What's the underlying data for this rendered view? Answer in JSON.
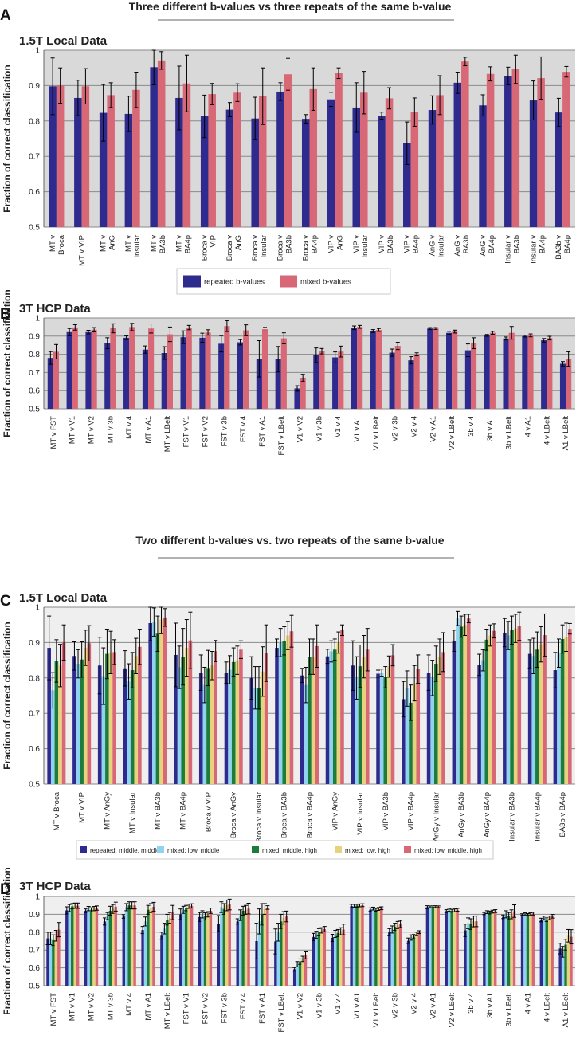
{
  "section_titles": {
    "top": "Three different b-values vs three repeats of the same b-value",
    "bottom": "Two different b-values vs. two repeats of the same b-value"
  },
  "colors": {
    "series": [
      "#2e2a8e",
      "#8fd3f0",
      "#1d7c3a",
      "#e8d27e",
      "#d96877"
    ],
    "plot_bg_shaded": "#d9d9d9",
    "plot_bg_light": "#efefef"
  },
  "chart_data": [
    {
      "panel": "A",
      "type": "bar",
      "title": "1.5T Local Data",
      "ylabel": "Fraction of correct classification",
      "ylim": [
        0.5,
        1.0
      ],
      "yticks": [
        "0.5",
        "0.6",
        "0.7",
        "0.8",
        "0.9",
        "1"
      ],
      "categories": [
        "MT v|Broca",
        "MT v VIP",
        "MT v|AnG",
        "MT v|Insular",
        "MT v|BA3b",
        "MT v|BA4p",
        "Broca v|VIP",
        "Broca v|AnG",
        "Broca v|Insular",
        "Broca v|BA3b",
        "Broca v|BA4p",
        "VIP v|AnG",
        "VIP v|Insular",
        "VIP v|BA3b",
        "VIP v|BA4p",
        "AnG v|Insular",
        "AnG v|BA3b",
        "AnG v|BA4p",
        "Insular v|BA3b",
        "Insular v|BA4p",
        "BA3b v|BA4p"
      ],
      "series": [
        {
          "name": "repeated b-values",
          "values": [
            0.898,
            0.865,
            0.823,
            0.82,
            0.952,
            0.865,
            0.813,
            0.832,
            0.807,
            0.883,
            0.806,
            0.861,
            0.838,
            0.815,
            0.737,
            0.831,
            0.908,
            0.844,
            0.927,
            0.858,
            0.824
          ],
          "errors": [
            0.08,
            0.05,
            0.08,
            0.05,
            0.05,
            0.09,
            0.06,
            0.02,
            0.06,
            0.025,
            0.012,
            0.02,
            0.07,
            0.01,
            0.06,
            0.04,
            0.03,
            0.03,
            0.025,
            0.055,
            0.04
          ]
        },
        {
          "name": "mixed b-values",
          "values": [
            0.9,
            0.898,
            0.873,
            0.888,
            0.971,
            0.906,
            0.876,
            0.88,
            0.87,
            0.932,
            0.89,
            0.935,
            0.88,
            0.864,
            0.825,
            0.873,
            0.968,
            0.933,
            0.946,
            0.921,
            0.939
          ],
          "errors": [
            0.05,
            0.05,
            0.035,
            0.05,
            0.025,
            0.08,
            0.03,
            0.025,
            0.08,
            0.045,
            0.06,
            0.015,
            0.06,
            0.03,
            0.04,
            0.055,
            0.012,
            0.02,
            0.04,
            0.06,
            0.015
          ]
        }
      ],
      "legend": [
        "repeated b-values",
        "mixed b-values"
      ]
    },
    {
      "panel": "B",
      "type": "bar",
      "title": "3T HCP Data",
      "ylabel": "Fraction of correct classification",
      "ylim": [
        0.5,
        1.0
      ],
      "yticks": [
        "0.5",
        "0.6",
        "0.7",
        "0.8",
        "0.9",
        "1"
      ],
      "categories": [
        "MT v FST",
        "MT v V1",
        "MT v V2",
        "MT v 3b",
        "MT v 4",
        "MT v A1",
        "MT v LBelt",
        "FST v V1",
        "FST v V2",
        "FST v 3b",
        "FST v 4",
        "FST v A1",
        "FST v LBelt",
        "V1 v V2",
        "V1 v 3b",
        "V1 v 4",
        "V1 v A1",
        "V1 v LBelt",
        "V2 v 3b",
        "V2 v 4",
        "V2 v A1",
        "V2 v LBelt",
        "3b v 4",
        "3b v A1",
        "3b v LBelt",
        "4 v A1",
        "4 v LBelt",
        "A1 v LBelt"
      ],
      "series": [
        {
          "name": "repeated b-values",
          "values": [
            0.78,
            0.922,
            0.922,
            0.861,
            0.891,
            0.826,
            0.807,
            0.894,
            0.891,
            0.858,
            0.866,
            0.775,
            0.773,
            0.612,
            0.795,
            0.783,
            0.946,
            0.928,
            0.809,
            0.767,
            0.942,
            0.918,
            0.822,
            0.904,
            0.887,
            0.9,
            0.877,
            0.748
          ],
          "errors": [
            0.035,
            0.02,
            0.01,
            0.03,
            0.01,
            0.02,
            0.035,
            0.035,
            0.025,
            0.045,
            0.015,
            0.1,
            0.07,
            0.015,
            0.04,
            0.03,
            0.01,
            0.008,
            0.02,
            0.02,
            0.005,
            0.008,
            0.035,
            0.005,
            0.008,
            0.005,
            0.01,
            0.012
          ]
        },
        {
          "name": "mixed b-values",
          "values": [
            0.814,
            0.948,
            0.935,
            0.943,
            0.95,
            0.942,
            0.91,
            0.947,
            0.92,
            0.955,
            0.932,
            0.938,
            0.888,
            0.67,
            0.817,
            0.815,
            0.951,
            0.934,
            0.846,
            0.8,
            0.942,
            0.925,
            0.861,
            0.918,
            0.918,
            0.904,
            0.889,
            0.774
          ],
          "errors": [
            0.04,
            0.015,
            0.012,
            0.025,
            0.02,
            0.025,
            0.04,
            0.012,
            0.015,
            0.03,
            0.03,
            0.01,
            0.03,
            0.02,
            0.015,
            0.03,
            0.008,
            0.008,
            0.02,
            0.008,
            0.005,
            0.008,
            0.03,
            0.008,
            0.035,
            0.008,
            0.01,
            0.04
          ]
        }
      ],
      "legend": []
    },
    {
      "panel": "C",
      "type": "bar",
      "title": "1.5T Local Data",
      "ylabel": "Fraction of correct classification",
      "ylim": [
        0.5,
        1.0
      ],
      "yticks": [
        "0.5",
        "0.6",
        "0.7",
        "0.8",
        "0.9",
        "1"
      ],
      "categories": [
        "MT v Broca",
        "MT v VIP",
        "MT v AnGy",
        "MT v Insular",
        "MT v BA3b",
        "MT v BA4p",
        "Broca v VIP",
        "Broca v AnGy",
        "Broca v Insular",
        "Broca v BA3b",
        "Broca v BA4p",
        "VIP v AnGy",
        "VIP v Insular",
        "VIP v BA3b",
        "VIP v BA4p",
        "AnGy v Insular",
        "AnGy v BA3b",
        "AnGy v BA4p",
        "Insular v BA3b",
        "Insular v BA4p",
        "BA3b v BA4p"
      ],
      "series": [
        {
          "name": "repeated: middle, middle",
          "values": [
            0.885,
            0.862,
            0.835,
            0.827,
            0.955,
            0.865,
            0.815,
            0.815,
            0.8,
            0.885,
            0.807,
            0.861,
            0.835,
            0.812,
            0.74,
            0.815,
            0.905,
            0.837,
            0.928,
            0.868,
            0.822
          ],
          "errors": [
            0.09,
            0.04,
            0.08,
            0.05,
            0.05,
            0.09,
            0.05,
            0.03,
            0.06,
            0.025,
            0.02,
            0.02,
            0.07,
            0.01,
            0.05,
            0.05,
            0.03,
            0.03,
            0.04,
            0.04,
            0.05
          ]
        },
        {
          "name": "mixed: low, middle",
          "values": [
            0.765,
            0.84,
            0.805,
            0.79,
            0.958,
            0.83,
            0.78,
            0.823,
            0.772,
            0.9,
            0.78,
            0.875,
            0.8,
            0.815,
            0.77,
            0.8,
            0.968,
            0.85,
            0.92,
            0.862,
            0.87
          ],
          "errors": [
            0.05,
            0.04,
            0.08,
            0.05,
            0.04,
            0.06,
            0.05,
            0.04,
            0.06,
            0.04,
            0.05,
            0.03,
            0.06,
            0.01,
            0.05,
            0.05,
            0.02,
            0.03,
            0.04,
            0.05,
            0.04
          ]
        },
        {
          "name": "mixed: middle, high",
          "values": [
            0.848,
            0.852,
            0.868,
            0.822,
            0.925,
            0.86,
            0.828,
            0.845,
            0.772,
            0.905,
            0.86,
            0.88,
            0.833,
            0.802,
            0.73,
            0.84,
            0.945,
            0.908,
            0.935,
            0.88,
            0.91
          ],
          "errors": [
            0.06,
            0.05,
            0.07,
            0.05,
            0.05,
            0.08,
            0.05,
            0.04,
            0.06,
            0.04,
            0.05,
            0.03,
            0.06,
            0.03,
            0.05,
            0.05,
            0.03,
            0.03,
            0.04,
            0.05,
            0.04
          ]
        },
        {
          "name": "mixed: low, high",
          "values": [
            0.835,
            0.885,
            0.872,
            0.862,
            0.965,
            0.885,
            0.835,
            0.85,
            0.818,
            0.92,
            0.86,
            0.9,
            0.86,
            0.832,
            0.785,
            0.86,
            0.95,
            0.92,
            0.94,
            0.895,
            0.915
          ],
          "errors": [
            0.06,
            0.05,
            0.06,
            0.05,
            0.04,
            0.08,
            0.04,
            0.04,
            0.07,
            0.04,
            0.05,
            0.03,
            0.06,
            0.03,
            0.05,
            0.05,
            0.03,
            0.03,
            0.04,
            0.05,
            0.04
          ]
        },
        {
          "name": "mixed: low, middle, high",
          "values": [
            0.9,
            0.898,
            0.873,
            0.888,
            0.971,
            0.906,
            0.876,
            0.88,
            0.87,
            0.932,
            0.89,
            0.935,
            0.88,
            0.864,
            0.825,
            0.873,
            0.968,
            0.933,
            0.946,
            0.921,
            0.939
          ],
          "errors": [
            0.05,
            0.05,
            0.035,
            0.05,
            0.025,
            0.08,
            0.03,
            0.025,
            0.08,
            0.045,
            0.06,
            0.015,
            0.06,
            0.03,
            0.04,
            0.055,
            0.012,
            0.02,
            0.04,
            0.06,
            0.015
          ]
        }
      ],
      "legend": [
        "repeated: middle, middle",
        "mixed: low, middle",
        "mixed: middle, high",
        "mixed: low, high",
        "mixed: low, middle, high"
      ]
    },
    {
      "panel": "D",
      "type": "bar",
      "title": "3T HCP Data",
      "ylabel": "Fraction of correct classification",
      "ylim": [
        0.5,
        1.0
      ],
      "yticks": [
        "0.5",
        "0.6",
        "0.7",
        "0.8",
        "0.9",
        "1"
      ],
      "categories": [
        "MT v FST",
        "MT v V1",
        "MT v V2",
        "MT v 3b",
        "MT v 4",
        "MT v A1",
        "MT v LBelt",
        "FST v V1",
        "FST v V2",
        "FST v 3b",
        "FST v 4",
        "FST v A1",
        "FST v LBelt",
        "V1 v V2",
        "V1 v 3b",
        "V1 v 4",
        "V1 v A1",
        "V1 v LBelt",
        "V2 v 3b",
        "V2 v 4",
        "V2 v A1",
        "V2 v LBelt",
        "3b v 4",
        "3b v A1",
        "3b v LBelt",
        "4 v A1",
        "4 v LBelt",
        "A1 v LBelt"
      ],
      "series": [
        {
          "name": "repeated: middle, middle",
          "values": [
            0.765,
            0.922,
            0.92,
            0.86,
            0.888,
            0.812,
            0.78,
            0.9,
            0.885,
            0.848,
            0.86,
            0.75,
            0.748,
            0.592,
            0.773,
            0.768,
            0.946,
            0.926,
            0.8,
            0.752,
            0.94,
            0.918,
            0.81,
            0.904,
            0.886,
            0.898,
            0.868,
            0.708
          ],
          "errors": [
            0.035,
            0.02,
            0.01,
            0.02,
            0.01,
            0.02,
            0.02,
            0.03,
            0.025,
            0.045,
            0.015,
            0.1,
            0.07,
            0.01,
            0.02,
            0.02,
            0.01,
            0.01,
            0.02,
            0.015,
            0.008,
            0.008,
            0.035,
            0.006,
            0.01,
            0.005,
            0.01,
            0.03
          ]
        },
        {
          "name": "mixed: low, middle",
          "values": [
            0.765,
            0.935,
            0.932,
            0.89,
            0.94,
            0.86,
            0.82,
            0.925,
            0.9,
            0.94,
            0.895,
            0.86,
            0.8,
            0.62,
            0.785,
            0.79,
            0.948,
            0.932,
            0.815,
            0.77,
            0.942,
            0.925,
            0.85,
            0.912,
            0.9,
            0.902,
            0.88,
            0.69
          ],
          "errors": [
            0.035,
            0.02,
            0.012,
            0.02,
            0.02,
            0.025,
            0.03,
            0.02,
            0.02,
            0.03,
            0.03,
            0.07,
            0.05,
            0.015,
            0.02,
            0.02,
            0.008,
            0.008,
            0.02,
            0.015,
            0.005,
            0.008,
            0.03,
            0.008,
            0.02,
            0.006,
            0.01,
            0.03
          ]
        },
        {
          "name": "mixed: middle, high",
          "values": [
            0.755,
            0.945,
            0.925,
            0.92,
            0.95,
            0.925,
            0.87,
            0.935,
            0.888,
            0.93,
            0.92,
            0.9,
            0.86,
            0.635,
            0.8,
            0.795,
            0.948,
            0.925,
            0.83,
            0.775,
            0.942,
            0.92,
            0.845,
            0.91,
            0.89,
            0.898,
            0.87,
            0.73
          ],
          "errors": [
            0.03,
            0.015,
            0.012,
            0.025,
            0.02,
            0.025,
            0.03,
            0.015,
            0.02,
            0.03,
            0.025,
            0.06,
            0.04,
            0.015,
            0.02,
            0.02,
            0.008,
            0.008,
            0.02,
            0.012,
            0.005,
            0.008,
            0.03,
            0.008,
            0.02,
            0.006,
            0.01,
            0.03
          ]
        },
        {
          "name": "mixed: low, high",
          "values": [
            0.78,
            0.948,
            0.932,
            0.93,
            0.95,
            0.935,
            0.88,
            0.945,
            0.9,
            0.95,
            0.925,
            0.93,
            0.88,
            0.65,
            0.81,
            0.805,
            0.95,
            0.93,
            0.84,
            0.79,
            0.943,
            0.922,
            0.86,
            0.915,
            0.9,
            0.902,
            0.88,
            0.78
          ],
          "errors": [
            0.03,
            0.015,
            0.012,
            0.025,
            0.02,
            0.025,
            0.03,
            0.012,
            0.015,
            0.03,
            0.025,
            0.03,
            0.035,
            0.015,
            0.015,
            0.02,
            0.008,
            0.008,
            0.02,
            0.01,
            0.005,
            0.008,
            0.03,
            0.008,
            0.025,
            0.006,
            0.01,
            0.035
          ]
        },
        {
          "name": "mixed: low, middle, high",
          "values": [
            0.814,
            0.948,
            0.935,
            0.943,
            0.95,
            0.942,
            0.91,
            0.947,
            0.92,
            0.955,
            0.932,
            0.938,
            0.888,
            0.67,
            0.817,
            0.815,
            0.951,
            0.934,
            0.846,
            0.8,
            0.942,
            0.925,
            0.861,
            0.918,
            0.918,
            0.904,
            0.889,
            0.774
          ],
          "errors": [
            0.04,
            0.015,
            0.012,
            0.025,
            0.02,
            0.025,
            0.04,
            0.012,
            0.015,
            0.03,
            0.03,
            0.01,
            0.03,
            0.02,
            0.015,
            0.03,
            0.008,
            0.008,
            0.02,
            0.008,
            0.005,
            0.008,
            0.03,
            0.008,
            0.035,
            0.008,
            0.01,
            0.04
          ]
        }
      ],
      "legend": []
    }
  ]
}
